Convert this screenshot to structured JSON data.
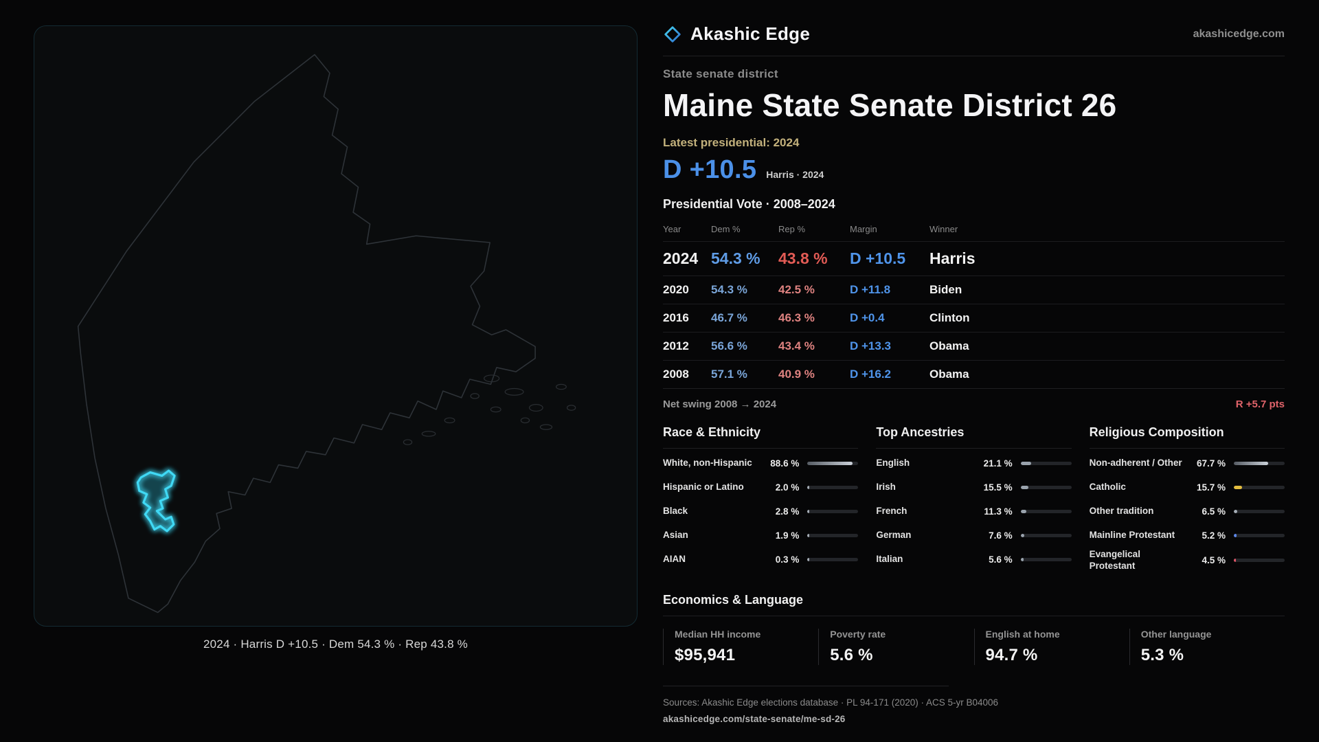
{
  "header": {
    "brand": "Akashic Edge",
    "site": "akashicedge.com"
  },
  "district": {
    "type_label": "State senate district",
    "title": "Maine State Senate District 26",
    "latest_label": "Latest presidential: 2024",
    "headline_margin": "D +10.5",
    "headline_detail": "Harris · 2024"
  },
  "map": {
    "caption": "2024 · Harris D +10.5 · Dem 54.3 % · Rep 43.8 %"
  },
  "vote_table": {
    "title": "Presidential Vote · 2008–2024",
    "columns": {
      "year": "Year",
      "dem": "Dem %",
      "rep": "Rep %",
      "margin": "Margin",
      "winner": "Winner"
    },
    "rows": [
      {
        "year": "2024",
        "dem": "54.3 %",
        "rep": "43.8 %",
        "margin": "D +10.5",
        "winner": "Harris"
      },
      {
        "year": "2020",
        "dem": "54.3 %",
        "rep": "42.5 %",
        "margin": "D +11.8",
        "winner": "Biden"
      },
      {
        "year": "2016",
        "dem": "46.7 %",
        "rep": "46.3 %",
        "margin": "D +0.4",
        "winner": "Clinton"
      },
      {
        "year": "2012",
        "dem": "56.6 %",
        "rep": "43.4 %",
        "margin": "D +13.3",
        "winner": "Obama"
      },
      {
        "year": "2008",
        "dem": "57.1 %",
        "rep": "40.9 %",
        "margin": "D +16.2",
        "winner": "Obama"
      }
    ],
    "net_swing_label": "Net swing 2008 → 2024",
    "net_swing_value": "R +5.7 pts"
  },
  "demographics": {
    "race": {
      "title": "Race & Ethnicity",
      "rows": [
        {
          "label": "White, non-Hispanic",
          "value": "88.6 %",
          "pct": 88.6
        },
        {
          "label": "Hispanic or Latino",
          "value": "2.0 %",
          "pct": 2.0,
          "color": "#a6adb6"
        },
        {
          "label": "Black",
          "value": "2.8 %",
          "pct": 2.8,
          "color": "#a6adb6"
        },
        {
          "label": "Asian",
          "value": "1.9 %",
          "pct": 1.9,
          "color": "#a6adb6"
        },
        {
          "label": "AIAN",
          "value": "0.3 %",
          "pct": 0.3,
          "color": "#a6adb6"
        }
      ]
    },
    "ancestries": {
      "title": "Top Ancestries",
      "rows": [
        {
          "label": "English",
          "value": "21.1 %",
          "pct": 21.1,
          "color": "#9aa3ad"
        },
        {
          "label": "Irish",
          "value": "15.5 %",
          "pct": 15.5,
          "color": "#9aa3ad"
        },
        {
          "label": "French",
          "value": "11.3 %",
          "pct": 11.3,
          "color": "#9aa3ad"
        },
        {
          "label": "German",
          "value": "7.6 %",
          "pct": 7.6,
          "color": "#9aa3ad"
        },
        {
          "label": "Italian",
          "value": "5.6 %",
          "pct": 5.6,
          "color": "#9aa3ad"
        }
      ]
    },
    "religion": {
      "title": "Religious Composition",
      "rows": [
        {
          "label": "Non-adherent / Other",
          "value": "67.7 %",
          "pct": 67.7
        },
        {
          "label": "Catholic",
          "value": "15.7 %",
          "pct": 15.7,
          "color": "#e3bd3f"
        },
        {
          "label": "Other tradition",
          "value": "6.5 %",
          "pct": 6.5,
          "color": "#a6adb6"
        },
        {
          "label": "Mainline Protestant",
          "value": "5.2 %",
          "pct": 5.2,
          "color": "#5c86e6"
        },
        {
          "label": "Evangelical Protestant",
          "value": "4.5 %",
          "pct": 4.5,
          "color": "#e25668"
        }
      ]
    }
  },
  "economics": {
    "title": "Economics & Language",
    "stats": [
      {
        "label": "Median HH income",
        "value": "$95,941"
      },
      {
        "label": "Poverty rate",
        "value": "5.6 %"
      },
      {
        "label": "English at home",
        "value": "94.7 %"
      },
      {
        "label": "Other language",
        "value": "5.3 %"
      }
    ]
  },
  "footer": {
    "sources": "Sources: Akashic Edge elections database · PL 94-171 (2020) · ACS 5-yr B04006",
    "permalink": "akashicedge.com/state-senate/me-sd-26"
  }
}
